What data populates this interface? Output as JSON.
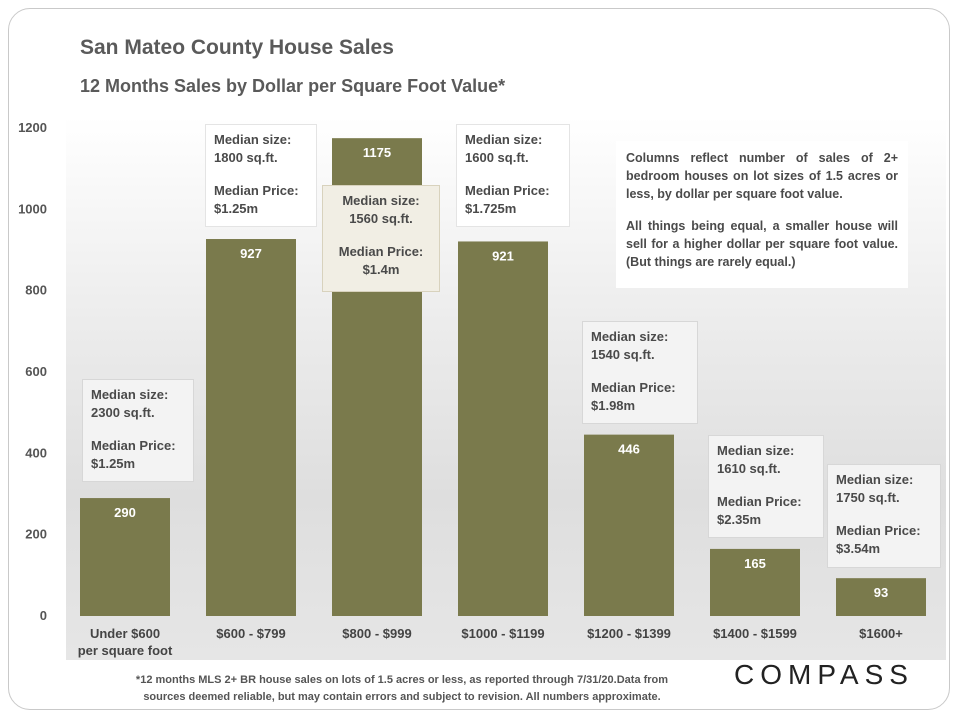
{
  "title": "San Mateo County House Sales",
  "subtitle": "12 Months Sales by Dollar per Square Foot Value*",
  "note": {
    "p1": "Columns reflect number of sales of 2+ bedroom houses on lot sizes of 1.5 acres or less, by dollar per square foot value.",
    "p2": "All things being equal, a smaller house will sell for a higher dollar per square foot value. (But things are rarely equal.)"
  },
  "footnote": {
    "line1": "*12 months MLS 2+ BR house sales on lots of 1.5 acres or less, as reported through 7/31/20.Data from",
    "line2": "sources deemed reliable, but may contain errors and subject to revision. All numbers approximate."
  },
  "logo": "COMPASS",
  "colors": {
    "bar": "#7a7a4c",
    "title": "#5a5a5a"
  },
  "chart_data": {
    "type": "bar",
    "title": "12 Months Sales by Dollar per Square Foot Value*",
    "categories": [
      [
        "Under $600",
        "per square foot"
      ],
      [
        "$600 - $799"
      ],
      [
        "$800 - $999"
      ],
      [
        "$1000 - $1199"
      ],
      [
        "$1200 - $1399"
      ],
      [
        "$1400 - $1599"
      ],
      [
        "$1600+"
      ]
    ],
    "values": [
      290,
      927,
      1175,
      921,
      446,
      165,
      93
    ],
    "value_labels": [
      "290",
      "927",
      "1175",
      "921",
      "446",
      "165",
      "93"
    ],
    "ylim": [
      0,
      1200
    ],
    "yticks": [
      0,
      200,
      400,
      600,
      800,
      1000,
      1200
    ],
    "grid": false,
    "annotations": [
      {
        "size_label": "Median size:",
        "size": "2300 sq.ft.",
        "price_label": "Median Price:",
        "price": "$1.25m"
      },
      {
        "size_label": "Median size:",
        "size": "1800 sq.ft.",
        "price_label": "Median Price:",
        "price": "$1.25m"
      },
      {
        "size_label": "Median size:",
        "size": "1560 sq.ft.",
        "price_label": "Median Price:",
        "price": "$1.4m"
      },
      {
        "size_label": "Median size:",
        "size": "1600 sq.ft.",
        "price_label": "Median Price:",
        "price": "$1.725m"
      },
      {
        "size_label": "Median size:",
        "size": "1540 sq.ft.",
        "price_label": "Median Price:",
        "price": "$1.98m"
      },
      {
        "size_label": "Median size:",
        "size": "1610 sq.ft.",
        "price_label": "Median Price:",
        "price": "$2.35m"
      },
      {
        "size_label": "Median size:",
        "size": "1750 sq.ft.",
        "price_label": "Median Price:",
        "price": "$3.54m"
      }
    ]
  }
}
